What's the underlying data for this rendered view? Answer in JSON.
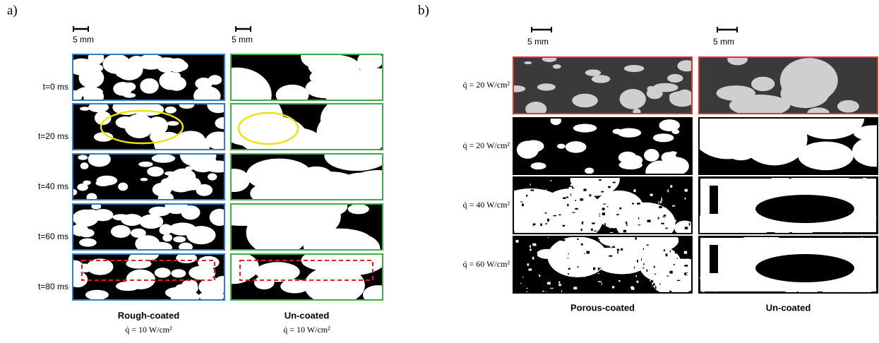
{
  "panel_a": {
    "label": "a)",
    "scale_labels": [
      "5 mm",
      "5 mm"
    ],
    "row_labels": [
      "t=0 ms",
      "t=20 ms",
      "t=40 ms",
      "t=60 ms",
      "t=80 ms"
    ],
    "columns": [
      {
        "title": "Rough-coated",
        "heat_flux": "q̇ = 10 W/cm²"
      },
      {
        "title": "Un-coated",
        "heat_flux": "q̇ = 10 W/cm²"
      }
    ]
  },
  "panel_b": {
    "label": "b)",
    "scale_labels": [
      "5 mm",
      "5 mm"
    ],
    "row_labels": [
      "q̇ = 20 W/cm²",
      "q̇ = 20 W/cm²",
      "q̇ = 40 W/cm²",
      "q̇ = 60 W/cm²"
    ],
    "columns": [
      {
        "title": "Porous-coated"
      },
      {
        "title": "Un-coated"
      }
    ]
  }
}
